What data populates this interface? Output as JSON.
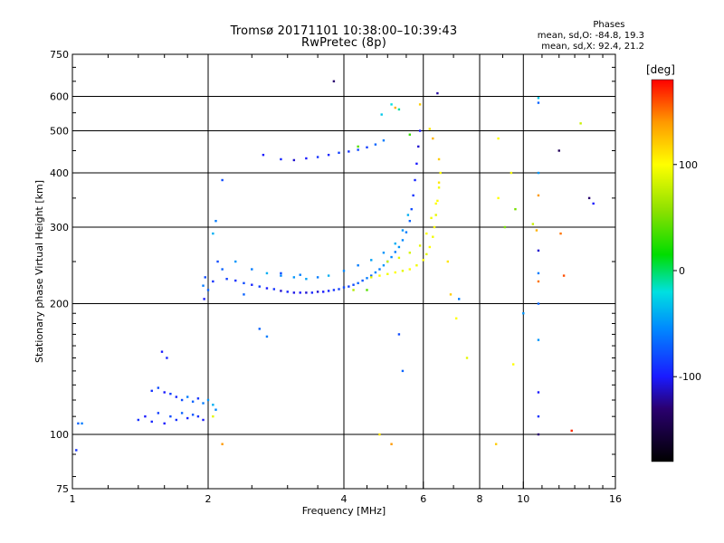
{
  "title": "Tromsø 20171101 10:38:00–10:39:43",
  "subtitle": "RwPretec (8p)",
  "stats": {
    "heading": "Phases",
    "line_o": "mean, sd,O: -84.8, 19.3",
    "line_x": "mean, sd,X:  92.4, 21.2"
  },
  "colorbar": {
    "label": "[deg]",
    "ticks": [
      {
        "value": 100,
        "label": "100"
      },
      {
        "value": 0,
        "label": "0"
      },
      {
        "value": -100,
        "label": "-100"
      }
    ],
    "range": [
      -180,
      180
    ],
    "stops": [
      {
        "deg": -180,
        "color": "#000000"
      },
      {
        "deg": -130,
        "color": "#2a0070"
      },
      {
        "deg": -100,
        "color": "#1a1aff"
      },
      {
        "deg": -55,
        "color": "#0088ff"
      },
      {
        "deg": -20,
        "color": "#00e0e0"
      },
      {
        "deg": 15,
        "color": "#00dd00"
      },
      {
        "deg": 55,
        "color": "#88e000"
      },
      {
        "deg": 100,
        "color": "#ffff00"
      },
      {
        "deg": 140,
        "color": "#ff9900"
      },
      {
        "deg": 180,
        "color": "#ff0000"
      }
    ]
  },
  "chart_data": {
    "type": "scatter",
    "title": "Tromsø 20171101 10:38:00–10:39:43",
    "subtitle": "RwPretec (8p)",
    "xlabel": "Frequency [MHz]",
    "ylabel": "Stationary phase Virtual Height [km]",
    "xscale": "log",
    "yscale": "log",
    "xlim": [
      1,
      16
    ],
    "ylim": [
      75,
      750
    ],
    "xticks": [
      {
        "value": 1,
        "label": "1"
      },
      {
        "value": 2,
        "label": "2"
      },
      {
        "value": 4,
        "label": "4"
      },
      {
        "value": 6,
        "label": "6"
      },
      {
        "value": 8,
        "label": "8"
      },
      {
        "value": 10,
        "label": "10"
      },
      {
        "value": 16,
        "label": "16"
      }
    ],
    "yticks": [
      {
        "value": 75,
        "label": "75"
      },
      {
        "value": 100,
        "label": "100"
      },
      {
        "value": 200,
        "label": "200"
      },
      {
        "value": 300,
        "label": "300"
      },
      {
        "value": 400,
        "label": "400"
      },
      {
        "value": 500,
        "label": "500"
      },
      {
        "value": 600,
        "label": "600"
      },
      {
        "value": 750,
        "label": "750"
      }
    ],
    "grid_x": [
      2,
      4,
      6,
      8,
      10
    ],
    "grid_y": [
      100,
      200,
      300,
      400,
      500,
      600
    ],
    "color_variable": "phase [deg]",
    "series": [
      {
        "name": "O-mode",
        "points": [
          [
            1.03,
            106,
            -70
          ],
          [
            1.05,
            106,
            -60
          ],
          [
            1.02,
            92,
            -90
          ],
          [
            1.4,
            108,
            -90
          ],
          [
            1.45,
            110,
            -100
          ],
          [
            1.5,
            107,
            -95
          ],
          [
            1.55,
            112,
            -85
          ],
          [
            1.6,
            106,
            -100
          ],
          [
            1.65,
            110,
            -80
          ],
          [
            1.7,
            108,
            -90
          ],
          [
            1.75,
            112,
            -70
          ],
          [
            1.8,
            109,
            -95
          ],
          [
            1.85,
            111,
            -75
          ],
          [
            1.9,
            110,
            -90
          ],
          [
            1.95,
            108,
            -100
          ],
          [
            1.5,
            126,
            -90
          ],
          [
            1.55,
            128,
            -80
          ],
          [
            1.6,
            125,
            -100
          ],
          [
            1.65,
            124,
            -85
          ],
          [
            1.7,
            122,
            -95
          ],
          [
            1.75,
            120,
            -80
          ],
          [
            1.8,
            122,
            -60
          ],
          [
            1.85,
            119,
            -70
          ],
          [
            1.9,
            121,
            -90
          ],
          [
            1.95,
            118,
            -60
          ],
          [
            2.0,
            120,
            -50
          ],
          [
            2.05,
            117,
            -40
          ],
          [
            2.08,
            114,
            -55
          ],
          [
            1.58,
            155,
            -100
          ],
          [
            1.62,
            150,
            -95
          ],
          [
            1.95,
            220,
            -60
          ],
          [
            1.97,
            230,
            -80
          ],
          [
            1.96,
            205,
            -100
          ],
          [
            2.0,
            215,
            -70
          ],
          [
            2.05,
            225,
            -90
          ],
          [
            2.05,
            290,
            -40
          ],
          [
            2.08,
            310,
            -60
          ],
          [
            2.1,
            250,
            -80
          ],
          [
            2.15,
            240,
            -70
          ],
          [
            2.15,
            385,
            -80
          ],
          [
            2.2,
            228,
            -85
          ],
          [
            2.3,
            226,
            -90
          ],
          [
            2.4,
            223,
            -80
          ],
          [
            2.5,
            221,
            -95
          ],
          [
            2.6,
            219,
            -85
          ],
          [
            2.7,
            217,
            -100
          ],
          [
            2.8,
            216,
            -90
          ],
          [
            2.9,
            214,
            -110
          ],
          [
            3.0,
            213,
            -95
          ],
          [
            3.1,
            212,
            -105
          ],
          [
            3.2,
            212,
            -100
          ],
          [
            3.3,
            212,
            -110
          ],
          [
            3.4,
            212,
            -95
          ],
          [
            3.5,
            213,
            -110
          ],
          [
            3.6,
            213,
            -100
          ],
          [
            3.7,
            214,
            -95
          ],
          [
            3.8,
            215,
            -90
          ],
          [
            3.9,
            216,
            -85
          ],
          [
            4.0,
            218,
            -80
          ],
          [
            4.1,
            219,
            -85
          ],
          [
            4.2,
            221,
            -80
          ],
          [
            4.3,
            223,
            -70
          ],
          [
            4.4,
            226,
            -75
          ],
          [
            4.5,
            229,
            -60
          ],
          [
            4.6,
            232,
            -70
          ],
          [
            4.7,
            236,
            -55
          ],
          [
            4.8,
            240,
            -60
          ],
          [
            4.9,
            245,
            -50
          ],
          [
            5.0,
            250,
            -60
          ],
          [
            5.1,
            256,
            -55
          ],
          [
            5.2,
            263,
            -60
          ],
          [
            5.3,
            270,
            -50
          ],
          [
            5.4,
            280,
            -55
          ],
          [
            5.5,
            292,
            -60
          ],
          [
            5.6,
            310,
            -70
          ],
          [
            5.65,
            330,
            -80
          ],
          [
            5.7,
            355,
            -90
          ],
          [
            5.75,
            385,
            -95
          ],
          [
            5.8,
            420,
            -100
          ],
          [
            5.85,
            460,
            -110
          ],
          [
            5.9,
            500,
            -100
          ],
          [
            2.3,
            250,
            -50
          ],
          [
            2.5,
            240,
            -60
          ],
          [
            2.7,
            235,
            -40
          ],
          [
            2.9,
            232,
            -55
          ],
          [
            3.1,
            230,
            -50
          ],
          [
            3.3,
            228,
            -45
          ],
          [
            3.5,
            230,
            -60
          ],
          [
            3.7,
            232,
            -40
          ],
          [
            4.0,
            238,
            -55
          ],
          [
            4.3,
            245,
            -60
          ],
          [
            4.6,
            252,
            -45
          ],
          [
            4.9,
            262,
            -50
          ],
          [
            5.2,
            275,
            -40
          ],
          [
            5.4,
            295,
            -50
          ],
          [
            5.55,
            320,
            -40
          ],
          [
            2.65,
            440,
            -100
          ],
          [
            2.9,
            430,
            -95
          ],
          [
            3.1,
            428,
            -110
          ],
          [
            3.3,
            432,
            -100
          ],
          [
            3.5,
            435,
            -90
          ],
          [
            3.7,
            440,
            -95
          ],
          [
            3.9,
            445,
            -85
          ],
          [
            4.1,
            448,
            -90
          ],
          [
            4.3,
            452,
            -80
          ],
          [
            4.5,
            458,
            -85
          ],
          [
            4.7,
            465,
            -70
          ],
          [
            4.9,
            475,
            -60
          ],
          [
            3.8,
            650,
            -130
          ],
          [
            4.85,
            545,
            -30
          ],
          [
            5.1,
            575,
            -20
          ],
          [
            5.3,
            560,
            -10
          ],
          [
            5.6,
            490,
            30
          ],
          [
            2.6,
            175,
            -70
          ],
          [
            2.7,
            168,
            -60
          ],
          [
            2.4,
            210,
            -70
          ],
          [
            2.9,
            235,
            -80
          ],
          [
            3.2,
            233,
            -60
          ],
          [
            10.8,
            580,
            -70
          ],
          [
            10.8,
            595,
            -30
          ],
          [
            10.8,
            400,
            -50
          ],
          [
            10.8,
            265,
            -110
          ],
          [
            10.8,
            235,
            -60
          ],
          [
            10.8,
            200,
            -70
          ],
          [
            10.8,
            165,
            -50
          ],
          [
            10.8,
            125,
            -100
          ],
          [
            10.8,
            110,
            -90
          ],
          [
            10.8,
            100,
            -130
          ],
          [
            5.3,
            170,
            -80
          ],
          [
            5.4,
            140,
            -70
          ],
          [
            7.2,
            205,
            -60
          ],
          [
            6.45,
            610,
            -120
          ],
          [
            10.0,
            190,
            -50
          ]
        ]
      },
      {
        "name": "X-mode",
        "points": [
          [
            4.6,
            230,
            90
          ],
          [
            4.8,
            232,
            100
          ],
          [
            5.0,
            234,
            95
          ],
          [
            5.2,
            236,
            100
          ],
          [
            5.4,
            238,
            90
          ],
          [
            5.6,
            240,
            100
          ],
          [
            5.8,
            245,
            95
          ],
          [
            6.0,
            252,
            100
          ],
          [
            6.1,
            260,
            90
          ],
          [
            6.2,
            270,
            100
          ],
          [
            6.3,
            285,
            95
          ],
          [
            6.35,
            300,
            100
          ],
          [
            6.4,
            320,
            90
          ],
          [
            6.45,
            345,
            100
          ],
          [
            6.5,
            370,
            95
          ],
          [
            6.55,
            400,
            100
          ],
          [
            5.0,
            250,
            80
          ],
          [
            5.3,
            255,
            90
          ],
          [
            5.6,
            262,
            85
          ],
          [
            5.9,
            272,
            90
          ],
          [
            6.1,
            290,
            100
          ],
          [
            6.25,
            315,
            95
          ],
          [
            6.4,
            340,
            100
          ],
          [
            6.5,
            380,
            110
          ],
          [
            6.5,
            430,
            120
          ],
          [
            6.3,
            480,
            130
          ],
          [
            6.2,
            505,
            110
          ],
          [
            5.9,
            575,
            120
          ],
          [
            5.2,
            565,
            130
          ],
          [
            6.8,
            250,
            110
          ],
          [
            6.9,
            210,
            120
          ],
          [
            7.1,
            185,
            100
          ],
          [
            7.5,
            150,
            90
          ],
          [
            8.8,
            480,
            100
          ],
          [
            8.8,
            350,
            100
          ],
          [
            9.1,
            300,
            50
          ],
          [
            9.4,
            400,
            95
          ],
          [
            10.5,
            305,
            80
          ],
          [
            10.7,
            295,
            130
          ],
          [
            10.8,
            355,
            140
          ],
          [
            10.8,
            225,
            150
          ],
          [
            12.0,
            450,
            -140
          ],
          [
            12.1,
            290,
            150
          ],
          [
            12.3,
            232,
            160
          ],
          [
            13.4,
            520,
            80
          ],
          [
            14.0,
            350,
            -130
          ],
          [
            14.3,
            340,
            -100
          ],
          [
            12.8,
            102,
            170
          ],
          [
            9.5,
            145,
            100
          ],
          [
            9.6,
            330,
            50
          ],
          [
            5.1,
            95,
            140
          ],
          [
            8.7,
            95,
            120
          ],
          [
            4.8,
            100,
            110
          ],
          [
            2.15,
            95,
            140
          ],
          [
            2.05,
            110,
            90
          ],
          [
            4.2,
            215,
            70
          ],
          [
            4.5,
            215,
            40
          ],
          [
            4.3,
            460,
            40
          ]
        ]
      }
    ]
  }
}
